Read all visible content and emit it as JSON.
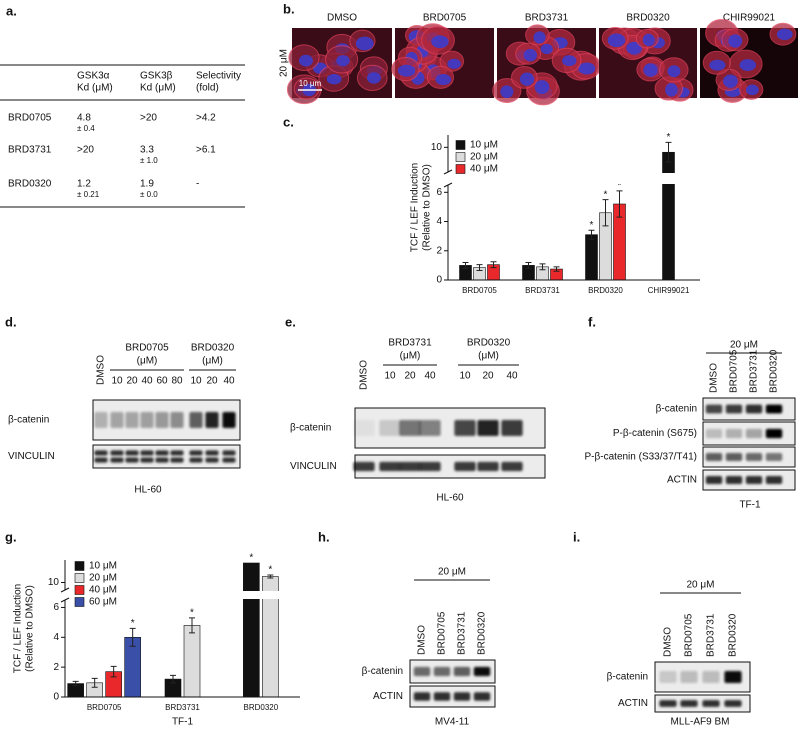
{
  "panels": {
    "a": {
      "letter": "a.",
      "headers": [
        [
          "GSK3α",
          "Kd (μM)"
        ],
        [
          "GSK3β",
          "Kd (μM)"
        ],
        [
          "Selectivity",
          "(fold)"
        ]
      ],
      "rows": [
        {
          "name": "BRD0705",
          "cells": [
            [
              4.8,
              "± 0.4"
            ],
            [
              ">20"
            ],
            [
              ">4.2"
            ]
          ]
        },
        {
          "name": "BRD3731",
          "cells": [
            [
              ">20"
            ],
            [
              3.3,
              "± 1.0"
            ],
            [
              ">6.1"
            ]
          ]
        },
        {
          "name": "BRD0320",
          "cells": [
            [
              1.2,
              "± 0.21"
            ],
            [
              1.9,
              "± 0.0"
            ],
            [
              "-"
            ]
          ]
        }
      ]
    },
    "b": {
      "letter": "b.",
      "conditions": [
        "DMSO",
        "BRD0705",
        "BRD3731",
        "BRD0320",
        "CHIR99021"
      ],
      "dose": "20 μM",
      "scale_bar": "10 μm"
    },
    "d": {
      "letter": "d.",
      "control": "DMSO",
      "groups": [
        {
          "name": "BRD0705",
          "unit": "(μM)",
          "lanes": [
            10,
            20,
            40,
            60,
            80
          ]
        },
        {
          "name": "BRD0320",
          "unit": "(μM)",
          "lanes": [
            10,
            20,
            40
          ]
        }
      ],
      "rows": [
        "β-catenin",
        "VINCULIN"
      ],
      "cell_line": "HL-60"
    },
    "e": {
      "letter": "e.",
      "control": "DMSO",
      "groups": [
        {
          "name": "BRD3731",
          "unit": "(μM)",
          "lanes": [
            10,
            20,
            40
          ]
        },
        {
          "name": "BRD0320",
          "unit": "(μM)",
          "lanes": [
            10,
            20,
            40
          ]
        }
      ],
      "rows": [
        "β-catenin",
        "VINCULIN"
      ],
      "cell_line": "HL-60"
    },
    "f": {
      "letter": "f.",
      "dose": "20 μM",
      "lanes": [
        "DMSO",
        "BRD0705",
        "BRD3731",
        "BRD0320"
      ],
      "rows": [
        "β-catenin",
        "P-β-catenin (S675)",
        "P-β-catenin (S33/37/T41)",
        "ACTIN"
      ],
      "cell_line": "TF-1"
    },
    "h": {
      "letter": "h.",
      "dose": "20 μM",
      "lanes": [
        "DMSO",
        "BRD0705",
        "BRD3731",
        "BRD0320"
      ],
      "rows": [
        "β-catenin",
        "ACTIN"
      ],
      "cell_line": "MV4-11"
    },
    "i": {
      "letter": "i.",
      "dose": "20 μM",
      "lanes": [
        "DMSO",
        "BRD0705",
        "BRD3731",
        "BRD0320"
      ],
      "rows": [
        "β-catenin",
        "ACTIN"
      ],
      "cell_line": "MLL-AF9 BM"
    }
  },
  "chart_data": [
    {
      "type": "bar",
      "letter": "c.",
      "ylabel": [
        "TCF / LEF Induction",
        "(Relative to DMSO)"
      ],
      "categories": [
        "BRD0705",
        "BRD3731",
        "BRD0320",
        "CHIR99021"
      ],
      "ylim": [
        0,
        10.5
      ],
      "ybreak": [
        6.5,
        9
      ],
      "yticks": [
        0,
        2,
        4,
        6,
        10
      ],
      "star": "*",
      "series": [
        {
          "name": "10 μM",
          "color": "#111111",
          "values": [
            1.0,
            1.0,
            3.1,
            9.8
          ],
          "errors": [
            0.2,
            0.2,
            0.3,
            0.4
          ],
          "significant": [
            false,
            false,
            true,
            true
          ]
        },
        {
          "name": "20 μM",
          "color": "#dcdcdc",
          "values": [
            0.85,
            0.9,
            4.6,
            null
          ],
          "errors": [
            0.2,
            0.2,
            0.9,
            null
          ],
          "significant": [
            false,
            false,
            true,
            false
          ]
        },
        {
          "name": "40 μM",
          "color": "#e8282b",
          "values": [
            1.05,
            0.75,
            5.2,
            null
          ],
          "errors": [
            0.2,
            0.15,
            0.9,
            null
          ],
          "significant": [
            false,
            false,
            true,
            false
          ]
        }
      ]
    },
    {
      "type": "bar",
      "letter": "g.",
      "ylabel": [
        "TCF / LEF Induction",
        "(Relative to DMSO)"
      ],
      "xlabel": "TF-1",
      "categories": [
        "BRD0705",
        "BRD3731",
        "BRD0320"
      ],
      "ylim": [
        0,
        11.5
      ],
      "ybreak": [
        6.5,
        9.5
      ],
      "yticks": [
        0,
        2,
        4,
        6,
        10
      ],
      "star": "*",
      "series": [
        {
          "name": "10 μM",
          "color": "#111111",
          "values": [
            0.9,
            1.2,
            11.3
          ],
          "errors": [
            0.15,
            0.25,
            null
          ],
          "significant": [
            false,
            false,
            true
          ]
        },
        {
          "name": "20 μM",
          "color": "#dcdcdc",
          "values": [
            0.95,
            4.8,
            10.4
          ],
          "errors": [
            0.3,
            0.5,
            0.1
          ],
          "significant": [
            false,
            true,
            true
          ]
        },
        {
          "name": "40 μM",
          "color": "#e8282b",
          "values": [
            1.7,
            null,
            null
          ],
          "errors": [
            0.35,
            null,
            null
          ],
          "significant": [
            false,
            false,
            false
          ]
        },
        {
          "name": "60 μM",
          "color": "#3a4fa8",
          "values": [
            4.0,
            null,
            null
          ],
          "errors": [
            0.6,
            null,
            null
          ],
          "significant": [
            true,
            false,
            false
          ]
        }
      ]
    }
  ]
}
